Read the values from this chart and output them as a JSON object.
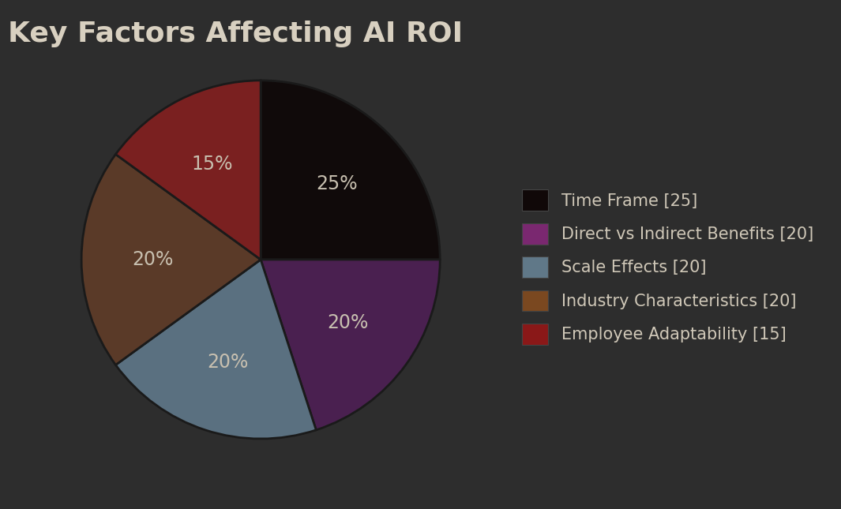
{
  "title": "Key Factors Affecting AI ROI",
  "title_fontsize": 26,
  "title_color": "#d8d0c0",
  "background_color": "#2d2d2d",
  "labels": [
    "Time Frame [25]",
    "Direct vs Indirect Benefits [20]",
    "Scale Effects [20]",
    "Industry Characteristics [20]",
    "Employee Adaptability [15]"
  ],
  "values": [
    25,
    20,
    20,
    20,
    15
  ],
  "pie_colors": [
    "#100a0a",
    "#4a2050",
    "#5a7080",
    "#5a3a28",
    "#7a2020"
  ],
  "legend_colors": [
    "#100808",
    "#7a2870",
    "#607888",
    "#7a4820",
    "#8a1818"
  ],
  "pct_labels": [
    "25%",
    "20%",
    "20%",
    "20%",
    "15%"
  ],
  "pct_color": "#c8c0b0",
  "pct_fontsize": 17,
  "legend_fontsize": 15,
  "legend_text_color": "#d0c8b8",
  "startangle": 90,
  "wedge_edge_color": "#1a1a1a",
  "wedge_linewidth": 2.0
}
